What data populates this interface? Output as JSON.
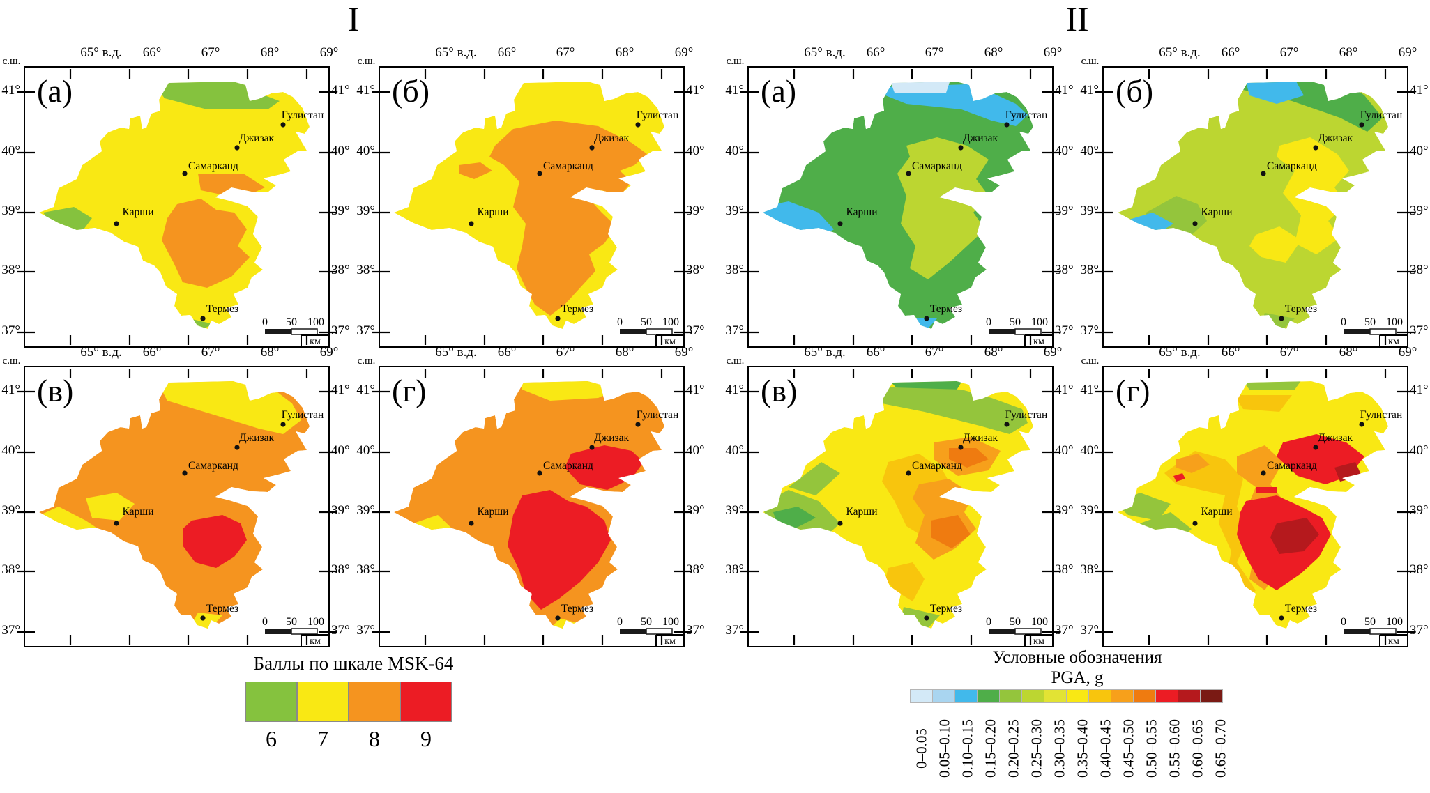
{
  "figure": {
    "groups": [
      {
        "title": "I",
        "panels": [
          {
            "label": "(а)"
          },
          {
            "label": "(б)"
          },
          {
            "label": "(в)"
          },
          {
            "label": "(г)"
          }
        ],
        "legend": {
          "title": "Баллы по шкале MSK-64",
          "items": [
            {
              "label": "6",
              "color": "#85C23E"
            },
            {
              "label": "7",
              "color": "#F9E814"
            },
            {
              "label": "8",
              "color": "#F5941F"
            },
            {
              "label": "9",
              "color": "#EC1C24"
            }
          ]
        }
      },
      {
        "title": "II",
        "panels": [
          {
            "label": "(а)"
          },
          {
            "label": "(б)"
          },
          {
            "label": "(в)"
          },
          {
            "label": "(г)"
          }
        ],
        "legend": {
          "title": "Условные обозначения",
          "subtitle": "PGA, g",
          "items": [
            {
              "label": "0–0.05",
              "color": "#D3E9F7"
            },
            {
              "label": "0.05–0.10",
              "color": "#A9D5F0"
            },
            {
              "label": "0.10–0.15",
              "color": "#41B9EB"
            },
            {
              "label": "0.15–0.20",
              "color": "#4FAE49"
            },
            {
              "label": "0.20–0.25",
              "color": "#94C53C"
            },
            {
              "label": "0.25–0.30",
              "color": "#BCD631"
            },
            {
              "label": "0.30–0.35",
              "color": "#E2E334"
            },
            {
              "label": "0.35–0.40",
              "color": "#F9E814"
            },
            {
              "label": "0.40–0.45",
              "color": "#F8C50D"
            },
            {
              "label": "0.45–0.50",
              "color": "#F7A01B"
            },
            {
              "label": "0.50–0.55",
              "color": "#EF7B10"
            },
            {
              "label": "0.55–0.60",
              "color": "#EC1C24"
            },
            {
              "label": "0.60–0.65",
              "color": "#B5191D"
            },
            {
              "label": "0.65–0.70",
              "color": "#7A1A14"
            }
          ]
        }
      }
    ],
    "axes": {
      "corner": "с.ш.",
      "top_ticks": [
        "65° в.д.",
        "66°",
        "67°",
        "68°",
        "69°"
      ],
      "lat_ticks": [
        "41°",
        "40°",
        "39°",
        "38°",
        "37°"
      ]
    },
    "cities": [
      {
        "name": "Гулистан"
      },
      {
        "name": "Джизак"
      },
      {
        "name": "Самарканд"
      },
      {
        "name": "Карши"
      },
      {
        "name": "Термез"
      }
    ],
    "scalebar": {
      "ticks": [
        "0",
        "50",
        "100"
      ],
      "unit": "км"
    }
  }
}
